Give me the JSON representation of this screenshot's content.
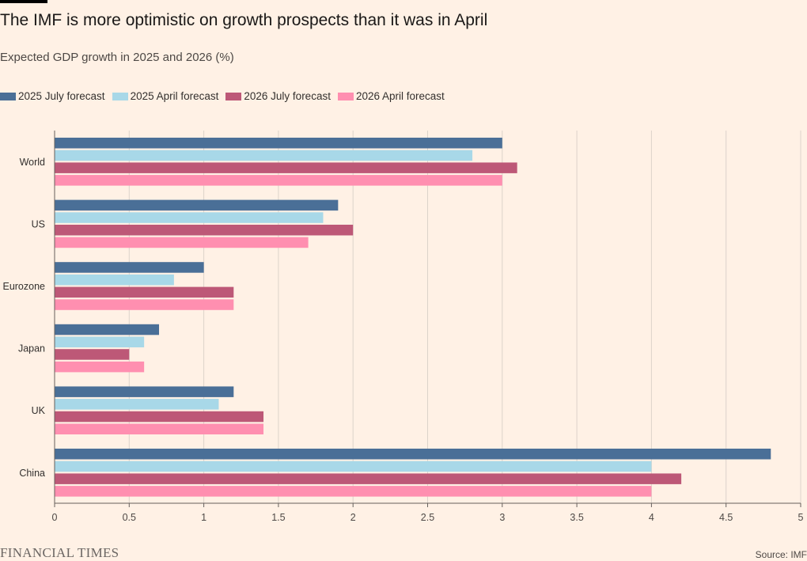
{
  "title": "The IMF is more optimistic on growth prospects than it was in April",
  "subtitle": "Expected GDP growth in 2025 and 2026 (%)",
  "source": "Source: IMF",
  "publisher": "FINANCIAL TIMES",
  "chart_data": {
    "type": "bar",
    "orientation": "horizontal",
    "categories": [
      "World",
      "US",
      "Eurozone",
      "Japan",
      "UK",
      "China"
    ],
    "series": [
      {
        "name": "2025 July forecast",
        "color": "#4a6f97",
        "values": [
          3.0,
          1.9,
          1.0,
          0.7,
          1.2,
          4.8
        ]
      },
      {
        "name": "2025 April forecast",
        "color": "#a8d8e8",
        "values": [
          2.8,
          1.8,
          0.8,
          0.6,
          1.1,
          4.0
        ]
      },
      {
        "name": "2026 July forecast",
        "color": "#bd5877",
        "values": [
          3.1,
          2.0,
          1.2,
          0.5,
          1.4,
          4.2
        ]
      },
      {
        "name": "2026 April forecast",
        "color": "#ff8fb0",
        "values": [
          3.0,
          1.7,
          1.2,
          0.6,
          1.4,
          4.0
        ]
      }
    ],
    "xlim": [
      0,
      5
    ],
    "xticks": [
      "0",
      "0.5",
      "1",
      "1.5",
      "2",
      "2.5",
      "3",
      "3.5",
      "4",
      "4.5",
      "5"
    ],
    "grid": true,
    "legend_position": "top"
  }
}
